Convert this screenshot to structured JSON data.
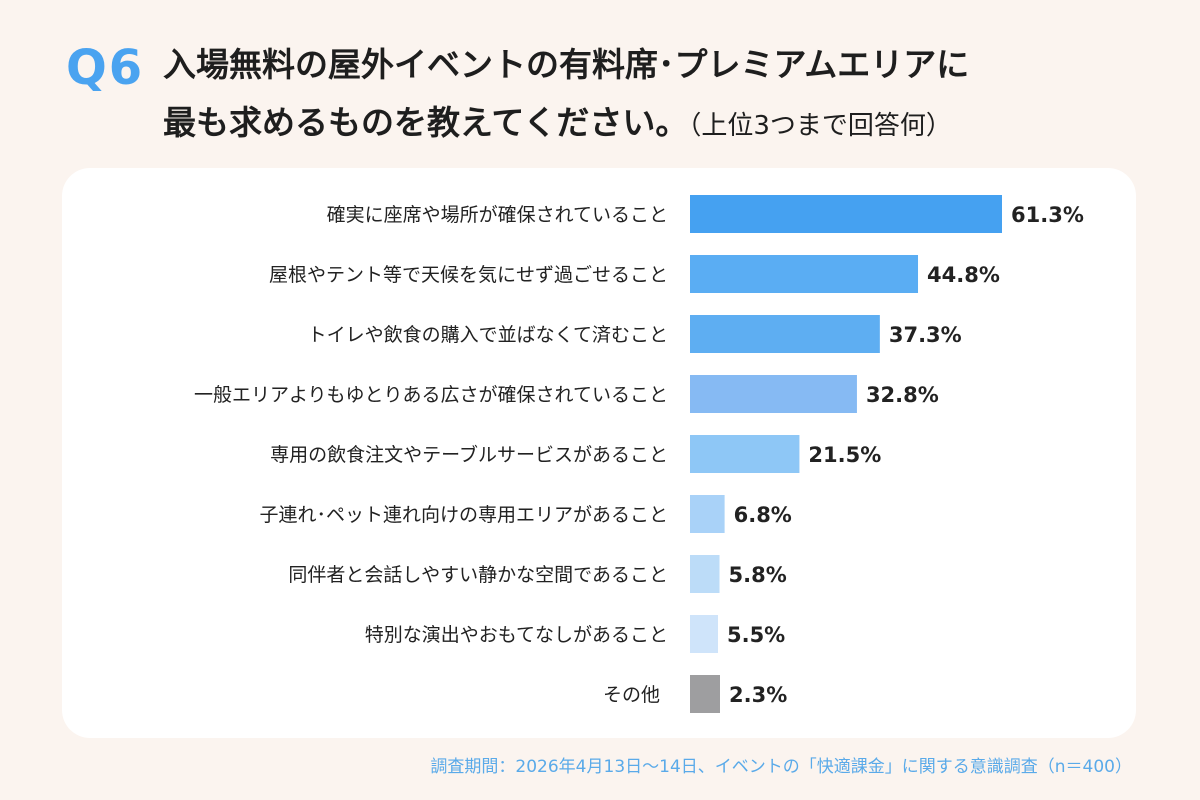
{
  "question": {
    "number": "Q6",
    "line1": "入場無料の屋外イベントの有料席･プレミアムエリアに",
    "line2": "最も求めるものを教えてください。",
    "note": "（上位3つまで回答何）"
  },
  "footnote": "調査期間：2026年4月13日～14日、イベントの「快適課金」に関する意識調査（n＝400）",
  "chart_data": {
    "type": "bar",
    "orientation": "horizontal",
    "categories": [
      "確実に座席や場所が確保されていること",
      "屋根やテント等で天候を気にせず過ごせること",
      "トイレや飲食の購入で並ばなくて済むこと",
      "一般エリアよりもゆとりある広さが確保されていること",
      "専用の飲食注文やテーブルサービスがあること",
      "子連れ･ペット連れ向けの専用エリアがあること",
      "同伴者と会話しやすい静かな空間であること",
      "特別な演出やおもてなしがあること",
      "その他"
    ],
    "values": [
      61.3,
      44.8,
      37.3,
      32.8,
      21.5,
      6.8,
      5.8,
      5.5,
      2.3
    ],
    "value_labels": [
      "61.3%",
      "44.8%",
      "37.3%",
      "32.8%",
      "21.5%",
      "6.8%",
      "5.8%",
      "5.5%",
      "2.3%"
    ],
    "colors": [
      "#45a1f1",
      "#5aadf3",
      "#5eaef2",
      "#86baf3",
      "#8ec7f6",
      "#a9d2f8",
      "#bcdcf8",
      "#cfe4fa",
      "#9e9ea0"
    ],
    "xlim": [
      0,
      61.3
    ],
    "grid": false,
    "legend": "none"
  }
}
